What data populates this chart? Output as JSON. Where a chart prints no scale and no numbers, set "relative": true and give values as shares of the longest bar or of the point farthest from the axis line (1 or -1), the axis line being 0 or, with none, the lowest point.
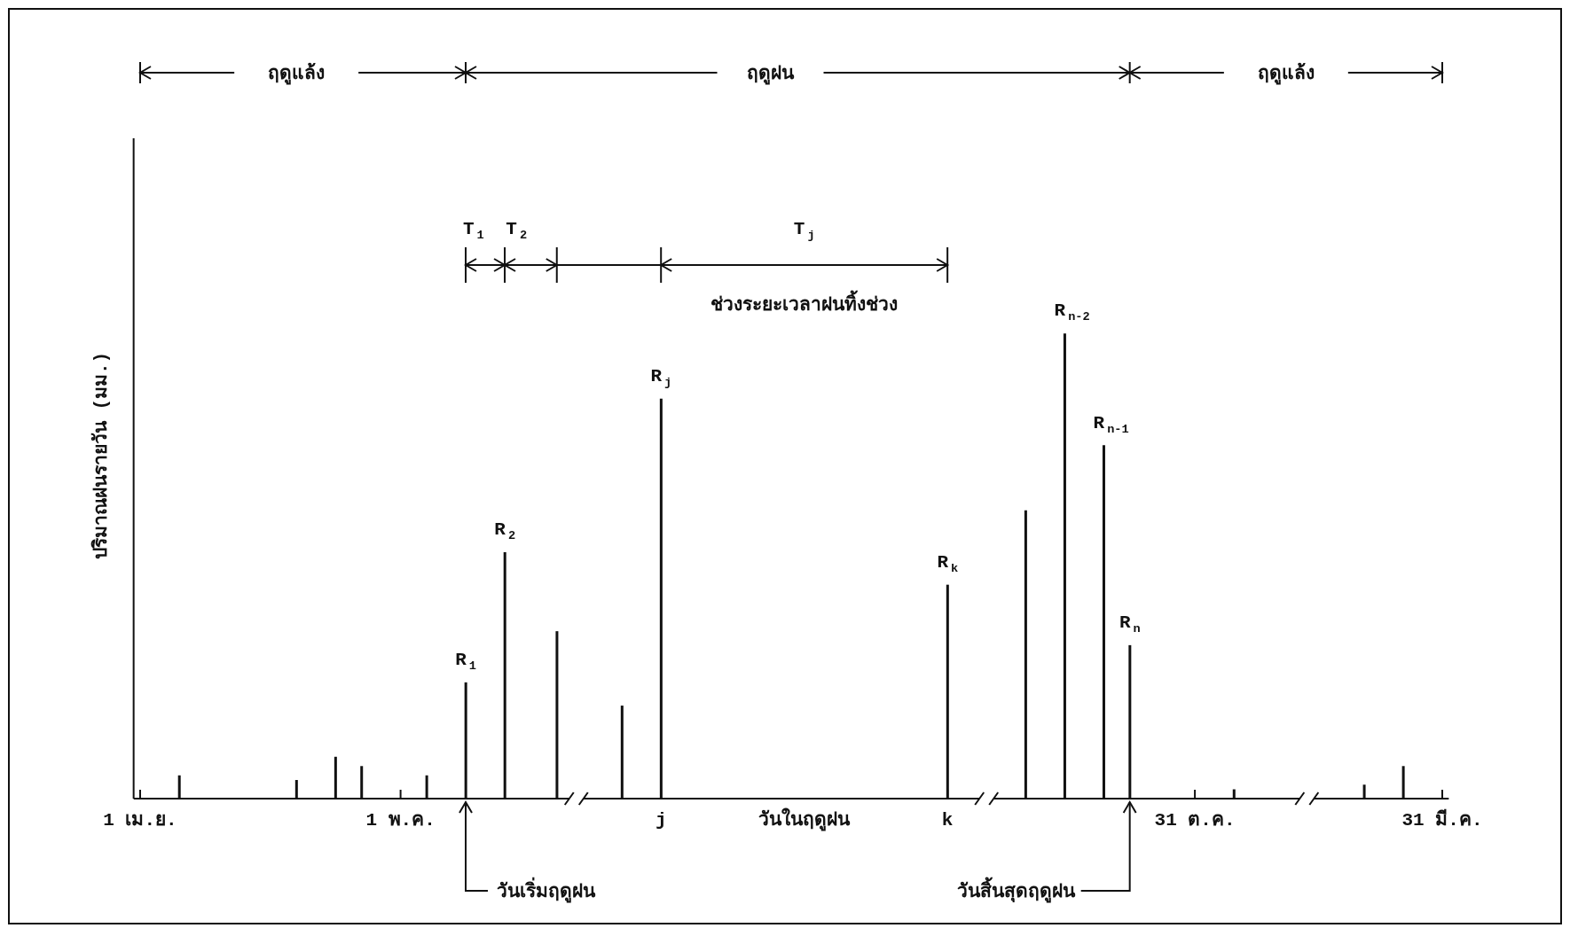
{
  "chart_data": {
    "type": "bar",
    "relative": true,
    "color": "#111111",
    "xlabel": "วันในฤดูฝน",
    "ylabel": "ปริมาณฝนรายวัน (มม.)",
    "categories": [
      "1 เม.ย.",
      null,
      null,
      null,
      null,
      null,
      null,
      null,
      null,
      null,
      null,
      null,
      null,
      null,
      null,
      null,
      null,
      null,
      null,
      null,
      "1 พ.ค.",
      null,
      null,
      null,
      null,
      null,
      null,
      null,
      null,
      null,
      null,
      null,
      null,
      null,
      null,
      null,
      null,
      null,
      null,
      null,
      "j",
      null,
      null,
      null,
      null,
      null,
      null,
      null,
      null,
      null,
      null,
      null,
      null,
      null,
      null,
      null,
      null,
      null,
      null,
      null,
      null,
      null,
      "k",
      null,
      null,
      null,
      null,
      null,
      null,
      null,
      null,
      null,
      null,
      null,
      null,
      null,
      null,
      null,
      null,
      null,
      null,
      "31 ต.ค.",
      null,
      null,
      null,
      null,
      null,
      null,
      null,
      null,
      null,
      null,
      null,
      null,
      null,
      null,
      null,
      null,
      null,
      null,
      "31 มี.ค."
    ],
    "values": [
      null,
      null,
      null,
      0.05,
      null,
      null,
      null,
      null,
      null,
      null,
      null,
      null,
      0.04,
      null,
      null,
      0.09,
      null,
      0.07,
      null,
      null,
      null,
      null,
      0.05,
      null,
      null,
      0.25,
      null,
      null,
      0.53,
      null,
      null,
      null,
      0.36,
      null,
      null,
      null,
      null,
      0.2,
      null,
      null,
      0.86,
      null,
      null,
      null,
      null,
      null,
      null,
      null,
      null,
      null,
      null,
      null,
      null,
      null,
      null,
      null,
      null,
      null,
      null,
      null,
      null,
      null,
      0.46,
      null,
      null,
      null,
      null,
      null,
      0.62,
      null,
      null,
      1,
      null,
      null,
      0.76,
      null,
      0.33,
      null,
      null,
      null,
      null,
      null,
      null,
      null,
      0.02,
      null,
      null,
      null,
      null,
      null,
      null,
      null,
      null,
      null,
      0.03,
      null,
      null,
      0.07,
      null,
      null,
      null
    ],
    "annotations": [
      "ฤดูแล้ง",
      "ฤดูฝน",
      "ฤดูแล้ง",
      "T$_{1}$",
      "T$_{2}$",
      "T$_{j}$",
      "ช่วงระยะเวลาฝนทิ้งช่วง",
      "วันเริ่มฤดูฝน",
      "วันสิ้นสุดฤดูฝน",
      "R$_{1}$",
      "R$_{2}$",
      "R$_{j}$",
      "R$_{k}$",
      "R$_{n-2}$",
      "R$_{n-1}$",
      "R$_{n}$"
    ]
  }
}
